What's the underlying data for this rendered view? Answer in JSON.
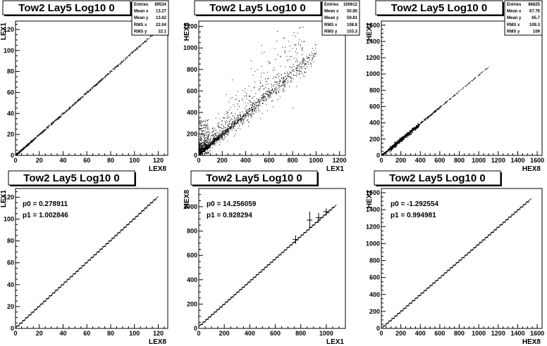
{
  "chart_data": [
    {
      "type": "scatter",
      "title": "Tow2 Lay5 Log10 0",
      "xlabel": "LEX8",
      "ylabel": "LEX1",
      "xlim": [
        0,
        128
      ],
      "ylim": [
        0,
        128
      ],
      "xticks": [
        0,
        20,
        40,
        60,
        80,
        100,
        120
      ],
      "yticks": [
        0,
        20,
        40,
        60,
        80,
        100,
        120
      ],
      "xtick_labels": [
        "0",
        "20",
        "40",
        "60",
        "80",
        "100",
        "120"
      ],
      "ytick_labels": [
        "0",
        "20",
        "40",
        "60",
        "80",
        "100",
        "120"
      ],
      "points_description_values": {
        "slope": 1.0,
        "intercept": 0.3,
        "xmax": 116
      },
      "stats": [
        {
          "label": "Entries",
          "value": "89534"
        },
        {
          "label": "Mean x",
          "value": "13.27"
        },
        {
          "label": "Mean y",
          "value": "13.62"
        },
        {
          "label": "RMS x",
          "value": "22.04"
        },
        {
          "label": "RMS y",
          "value": "22.1"
        }
      ]
    },
    {
      "type": "scatter",
      "title": "Tow2 Lay5 Log10 0",
      "xlabel": "LEX1",
      "ylabel": "HEX8",
      "xlim": [
        0,
        1250
      ],
      "ylim": [
        0,
        1250
      ],
      "xticks": [
        0,
        200,
        400,
        600,
        800,
        1000,
        1200
      ],
      "yticks": [
        0,
        200,
        400,
        600,
        800,
        1000,
        1200
      ],
      "xtick_labels": [
        "0",
        "200",
        "400",
        "600",
        "800",
        "1000",
        "1200"
      ],
      "ytick_labels": [
        "0",
        "200",
        "400",
        "600",
        "800",
        "1000",
        "1200"
      ],
      "points_description_values": {
        "slope": 0.93,
        "intercept": 14,
        "xmax": 1000
      },
      "stats": [
        {
          "label": "Entries",
          "value": "100612"
        },
        {
          "label": "Mean x",
          "value": "50.85"
        },
        {
          "label": "Mean y",
          "value": "59.81"
        },
        {
          "label": "RMS x",
          "value": "108.8"
        },
        {
          "label": "RMS y",
          "value": "103.3"
        }
      ]
    },
    {
      "type": "scatter",
      "title": "Tow2 Lay5 Log10 0",
      "xlabel": "HEX8",
      "ylabel": "HEX1",
      "xlim": [
        0,
        1650
      ],
      "ylim": [
        0,
        1650
      ],
      "xticks": [
        0,
        200,
        400,
        600,
        800,
        1000,
        1200,
        1400,
        1600
      ],
      "yticks": [
        0,
        200,
        400,
        600,
        800,
        1000,
        1200,
        1400,
        1600
      ],
      "xtick_labels": [
        "0",
        "200",
        "400",
        "600",
        "800",
        "1000",
        "1200",
        "1400",
        "1600"
      ],
      "ytick_labels": [
        "0",
        "200",
        "400",
        "600",
        "800",
        "1000",
        "1200",
        "1400",
        "1600"
      ],
      "points_description_values": {
        "slope": 0.995,
        "intercept": -1.3,
        "xmax": 1100
      },
      "stats": [
        {
          "label": "Entries",
          "value": "86825"
        },
        {
          "label": "Mean x",
          "value": "67.76"
        },
        {
          "label": "Mean y",
          "value": "65.7"
        },
        {
          "label": "RMS x",
          "value": "109.3"
        },
        {
          "label": "RMS y",
          "value": "109"
        }
      ]
    },
    {
      "type": "line",
      "title": "Tow2 Lay5 Log10 0",
      "xlabel": "LEX8",
      "ylabel": "LEX1",
      "xlim": [
        0,
        128
      ],
      "ylim": [
        0,
        128
      ],
      "xticks": [
        0,
        20,
        40,
        60,
        80,
        100,
        120
      ],
      "yticks": [
        0,
        20,
        40,
        60,
        80,
        100,
        120
      ],
      "xtick_labels": [
        "0",
        "20",
        "40",
        "60",
        "80",
        "100",
        "120"
      ],
      "ytick_labels": [
        "0",
        "20",
        "40",
        "60",
        "80",
        "100",
        "120"
      ],
      "fit": {
        "p0": 0.278911,
        "p1": 1.002846,
        "xmin": 0,
        "xmax": 120
      },
      "fit_labels": [
        "p0 = 0.278911",
        "p1 = 1.002846"
      ],
      "profile_range": {
        "xmin": 2,
        "xmax": 119,
        "step": 2.5
      }
    },
    {
      "type": "line",
      "title": "Tow2 Lay5 Log10 0",
      "xlabel": "LEX1",
      "ylabel": "HEX8",
      "xlim": [
        0,
        1150
      ],
      "ylim": [
        0,
        1150
      ],
      "xticks": [
        0,
        200,
        400,
        600,
        800,
        1000
      ],
      "yticks": [
        0,
        200,
        400,
        600,
        800,
        1000
      ],
      "xtick_labels": [
        "0",
        "200",
        "400",
        "600",
        "800",
        "1000"
      ],
      "ytick_labels": [
        "0",
        "200",
        "400",
        "600",
        "800",
        "1000"
      ],
      "fit": {
        "p0": 14.256059,
        "p1": 0.928294,
        "xmin": 0,
        "xmax": 1080
      },
      "fit_labels": [
        "p0 = 14.256059",
        "p1 = 0.928294"
      ],
      "profile_range": {
        "xmin": 20,
        "xmax": 1060,
        "step": 22
      },
      "error_points": [
        {
          "x": 760,
          "y": 730,
          "err": 35
        },
        {
          "x": 870,
          "y": 890,
          "err": 70
        },
        {
          "x": 940,
          "y": 910,
          "err": 40
        },
        {
          "x": 1000,
          "y": 960,
          "err": 25
        }
      ]
    },
    {
      "type": "line",
      "title": "Tow2 Lay5 Log10 0",
      "xlabel": "HEX8",
      "ylabel": "HEX1",
      "xlim": [
        0,
        1650
      ],
      "ylim": [
        0,
        1650
      ],
      "xticks": [
        0,
        200,
        400,
        600,
        800,
        1000,
        1200,
        1400,
        1600
      ],
      "yticks": [
        0,
        200,
        400,
        600,
        800,
        1000,
        1200,
        1400,
        1600
      ],
      "xtick_labels": [
        "0",
        "200",
        "400",
        "600",
        "800",
        "1000",
        "1200",
        "1400",
        "1600"
      ],
      "ytick_labels": [
        "0",
        "200",
        "400",
        "600",
        "800",
        "1000",
        "1200",
        "1400",
        "1600"
      ],
      "fit": {
        "p0": -1.292554,
        "p1": 0.994981,
        "xmin": 0,
        "xmax": 1540
      },
      "fit_labels": [
        "p0 = -1.292554",
        "p1 = 0.994981"
      ],
      "profile_range": {
        "xmin": 30,
        "xmax": 1520,
        "step": 30
      }
    }
  ]
}
